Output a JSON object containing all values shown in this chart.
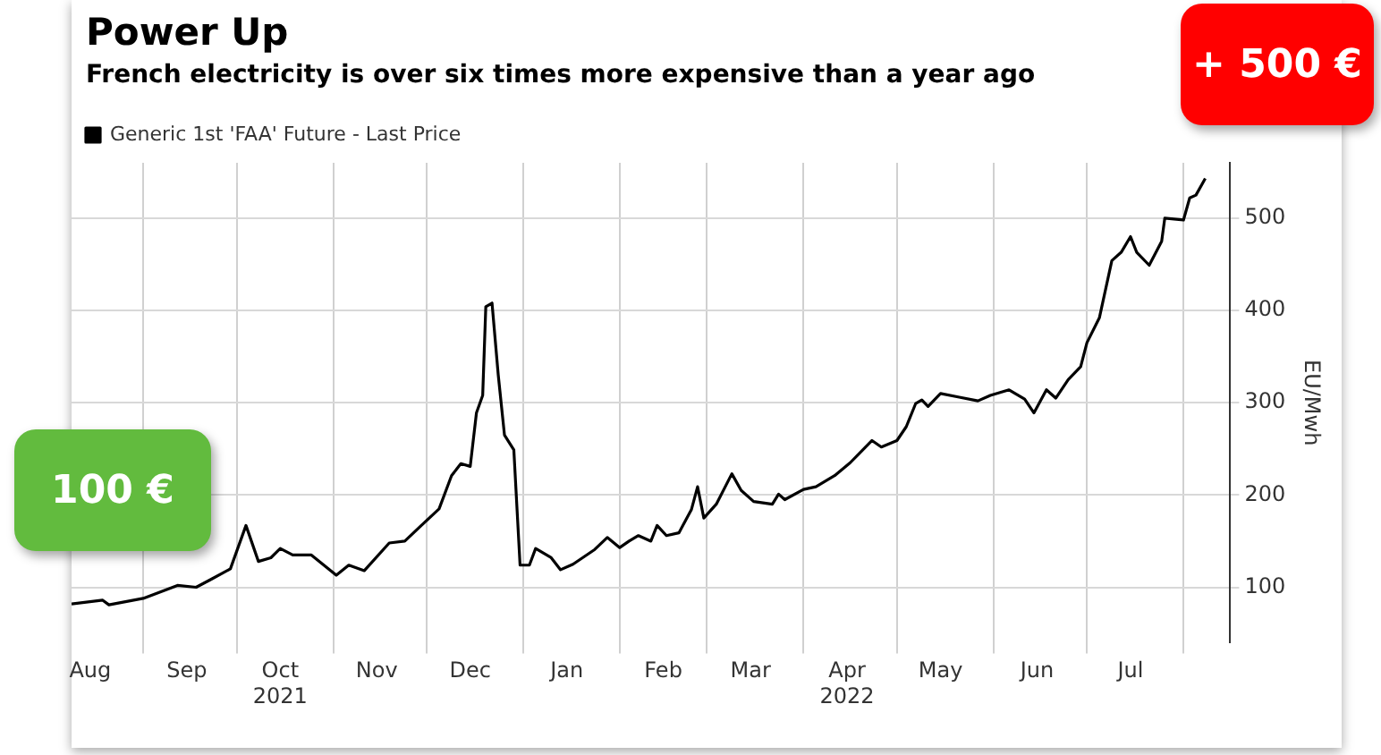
{
  "chart_data": {
    "type": "line",
    "title": "Power Up",
    "subtitle": "French electricity is over six times more expensive than a year ago",
    "ylabel": "EU/Mwh",
    "annotations": [
      "100 €",
      "+ 500 €"
    ],
    "x": [
      "2021-08-09",
      "2021-08-19",
      "2021-08-21",
      "2021-09-01",
      "2021-09-12",
      "2021-09-18",
      "2021-09-23",
      "2021-09-29",
      "2021-10-04",
      "2021-10-08",
      "2021-10-12",
      "2021-10-15",
      "2021-10-19",
      "2021-10-25",
      "2021-11-02",
      "2021-11-06",
      "2021-11-11",
      "2021-11-19",
      "2021-11-24",
      "2021-11-29",
      "2021-12-05",
      "2021-12-09",
      "2021-12-12",
      "2021-12-15",
      "2021-12-17",
      "2021-12-19",
      "2021-12-20",
      "2021-12-22",
      "2021-12-24",
      "2021-12-26",
      "2021-12-29",
      "2021-12-31",
      "2022-01-03",
      "2022-01-05",
      "2022-01-10",
      "2022-01-13",
      "2022-01-17",
      "2022-01-24",
      "2022-01-28",
      "2022-02-01",
      "2022-02-04",
      "2022-02-07",
      "2022-02-11",
      "2022-02-13",
      "2022-02-16",
      "2022-02-20",
      "2022-02-24",
      "2022-02-26",
      "2022-02-28",
      "2022-03-04",
      "2022-03-09",
      "2022-03-12",
      "2022-03-16",
      "2022-03-22",
      "2022-03-24",
      "2022-03-26",
      "2022-04-01",
      "2022-04-05",
      "2022-04-11",
      "2022-04-16",
      "2022-04-23",
      "2022-04-26",
      "2022-05-01",
      "2022-05-04",
      "2022-05-07",
      "2022-05-09",
      "2022-05-11",
      "2022-05-15",
      "2022-05-21",
      "2022-05-27",
      "2022-05-31",
      "2022-06-06",
      "2022-06-11",
      "2022-06-14",
      "2022-06-18",
      "2022-06-21",
      "2022-06-25",
      "2022-06-29",
      "2022-07-01",
      "2022-07-05",
      "2022-07-09",
      "2022-07-12",
      "2022-07-15",
      "2022-07-17",
      "2022-07-21",
      "2022-07-25",
      "2022-07-26",
      "2022-08-01",
      "2022-08-03",
      "2022-08-05",
      "2022-08-08"
    ],
    "series": [
      {
        "name": "Generic 1st 'FAA' Future - Last Price",
        "color": "#000000",
        "values": [
          82,
          86,
          81,
          88,
          102,
          100,
          109,
          120,
          167,
          128,
          132,
          142,
          135,
          135,
          113,
          124,
          118,
          148,
          150,
          166,
          185,
          221,
          234,
          231,
          289,
          308,
          404,
          408,
          330,
          265,
          249,
          124,
          124,
          142,
          132,
          119,
          125,
          141,
          154,
          143,
          150,
          156,
          150,
          167,
          156,
          159,
          184,
          209,
          175,
          190,
          223,
          205,
          193,
          190,
          201,
          195,
          206,
          209,
          221,
          235,
          259,
          252,
          259,
          274,
          299,
          303,
          296,
          310,
          306,
          302,
          308,
          314,
          304,
          289,
          314,
          305,
          325,
          339,
          365,
          392,
          454,
          463,
          480,
          463,
          449,
          475,
          500,
          498,
          522,
          525,
          543
        ]
      }
    ],
    "xlim": [
      "2021-08-09",
      "2022-08-16"
    ],
    "xticks": [
      {
        "value": "2021-08-15",
        "label": "Aug"
      },
      {
        "value": "2021-09-01",
        "label": null
      },
      {
        "value": "2021-09-15",
        "label": "Sep"
      },
      {
        "value": "2021-10-01",
        "label": null
      },
      {
        "value": "2021-10-15",
        "label": "Oct\n2021"
      },
      {
        "value": "2021-11-01",
        "label": null
      },
      {
        "value": "2021-11-15",
        "label": "Nov"
      },
      {
        "value": "2021-12-01",
        "label": null
      },
      {
        "value": "2021-12-15",
        "label": "Dec"
      },
      {
        "value": "2022-01-01",
        "label": null
      },
      {
        "value": "2022-01-15",
        "label": "Jan"
      },
      {
        "value": "2022-02-01",
        "label": null
      },
      {
        "value": "2022-02-15",
        "label": "Feb"
      },
      {
        "value": "2022-03-01",
        "label": null
      },
      {
        "value": "2022-03-15",
        "label": "Mar"
      },
      {
        "value": "2022-04-01",
        "label": null
      },
      {
        "value": "2022-04-15",
        "label": "Apr\n2022"
      },
      {
        "value": "2022-05-01",
        "label": null
      },
      {
        "value": "2022-05-15",
        "label": "May"
      },
      {
        "value": "2022-06-01",
        "label": null
      },
      {
        "value": "2022-06-15",
        "label": "Jun"
      },
      {
        "value": "2022-07-01",
        "label": null
      },
      {
        "value": "2022-07-15",
        "label": "Jul"
      },
      {
        "value": "2022-08-01",
        "label": null
      }
    ],
    "ylim": [
      40,
      560
    ],
    "yticks": [
      100,
      200,
      300,
      400,
      500
    ],
    "grid": true,
    "legend": "top left",
    "marker": "none",
    "line_style": "solid"
  }
}
